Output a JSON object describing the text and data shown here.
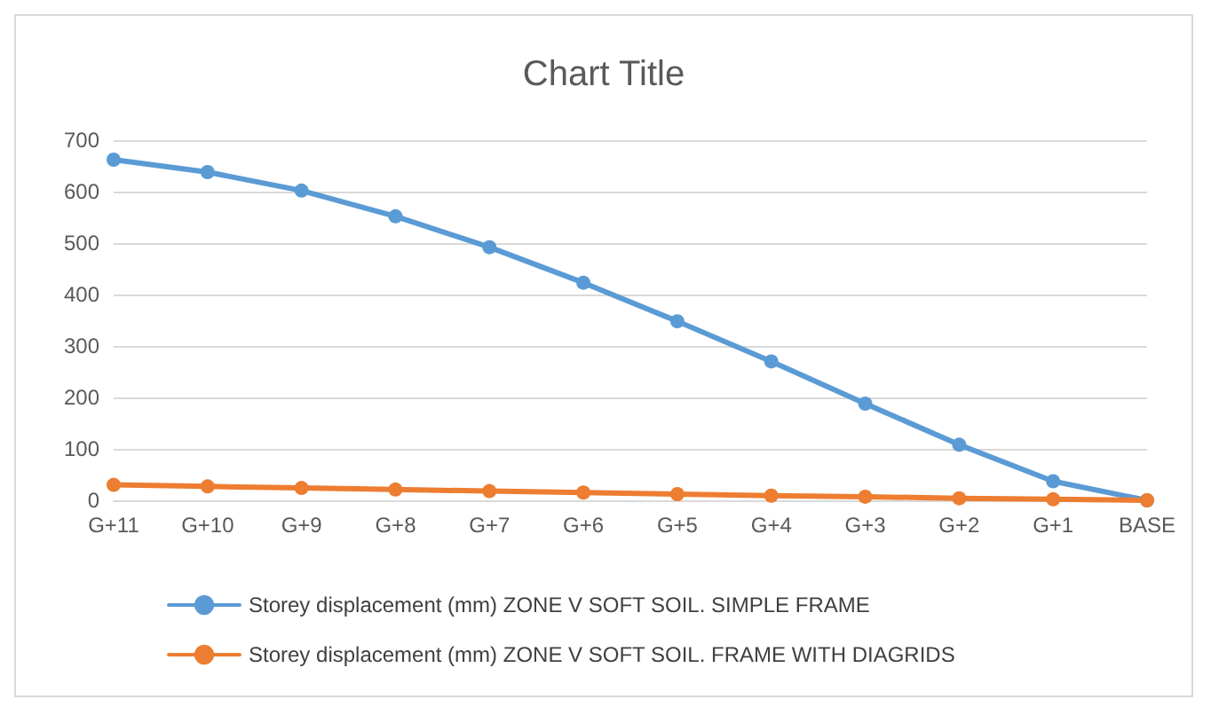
{
  "chart_data": {
    "type": "line",
    "title": "Chart Title",
    "categories": [
      "G+11",
      "G+10",
      "G+9",
      "G+8",
      "G+7",
      "G+6",
      "G+5",
      "G+4",
      "G+3",
      "G+2",
      "G+1",
      "BASE"
    ],
    "series": [
      {
        "name": "Storey displacement (mm) ZONE V SOFT SOIL. SIMPLE FRAME",
        "color": "#5b9bd5",
        "values": [
          662,
          638,
          602,
          552,
          492,
          423,
          348,
          270,
          188,
          108,
          37,
          0
        ]
      },
      {
        "name": "Storey displacement (mm) ZONE V SOFT SOIL. FRAME WITH DIAGRIDS",
        "color": "#ed7d31",
        "values": [
          30,
          27,
          24,
          21,
          18,
          15,
          12,
          9,
          7,
          4,
          2,
          0
        ]
      }
    ],
    "ylim": [
      0,
      700
    ],
    "yticks": [
      0,
      100,
      200,
      300,
      400,
      500,
      600,
      700
    ],
    "grid": "y",
    "legend": "bottom",
    "marker": "circle",
    "line_style": "solid"
  }
}
